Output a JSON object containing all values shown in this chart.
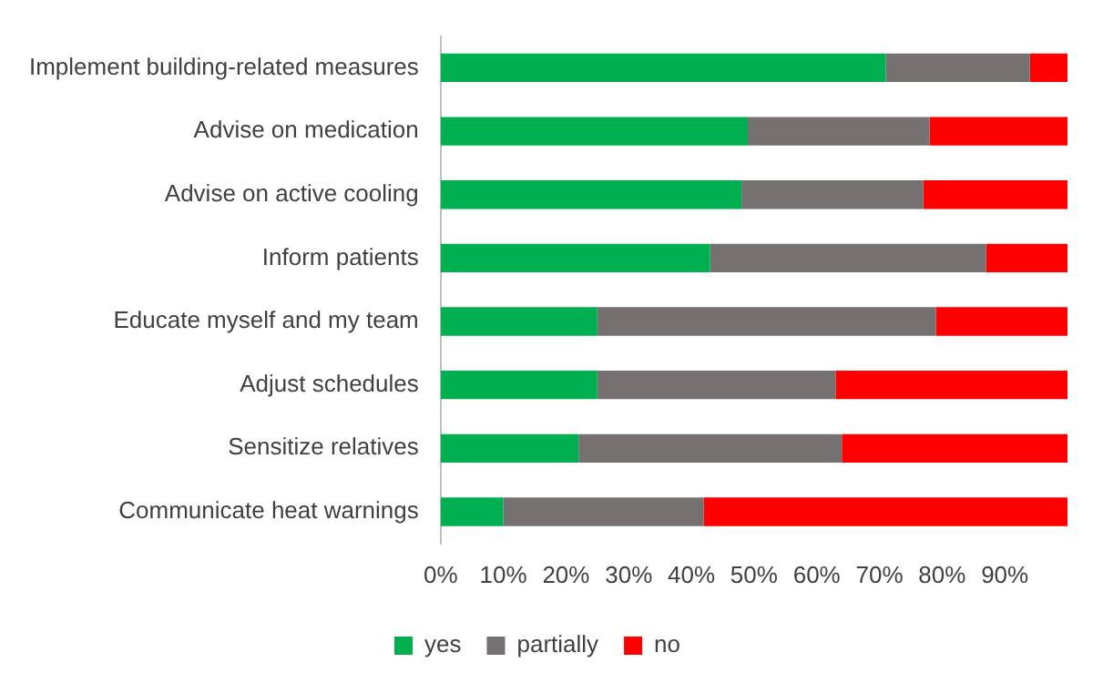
{
  "chart_data": {
    "type": "bar",
    "orientation": "horizontal",
    "stacked": true,
    "grid": false,
    "legend": "bottom",
    "categories": [
      "Implement building-related measures",
      "Advise on medication",
      "Advise on active cooling",
      "Inform patients",
      "Educate myself and my team",
      "Adjust schedules",
      "Sensitize relatives",
      "Communicate heat warnings"
    ],
    "series": [
      {
        "name": "yes",
        "color": "#00b050",
        "values": [
          71,
          49,
          48,
          43,
          25,
          25,
          22,
          10
        ]
      },
      {
        "name": "partially",
        "color": "#767171",
        "values": [
          23,
          29,
          29,
          44,
          54,
          38,
          42,
          32
        ]
      },
      {
        "name": "no",
        "color": "#ff0000",
        "values": [
          6,
          22,
          23,
          13,
          21,
          37,
          36,
          58
        ]
      }
    ],
    "xlim": [
      0,
      100
    ],
    "xticks": [
      {
        "value": 0,
        "label": "0%"
      },
      {
        "value": 10,
        "label": "10%"
      },
      {
        "value": 20,
        "label": "20%"
      },
      {
        "value": 30,
        "label": "30%"
      },
      {
        "value": 40,
        "label": "40%"
      },
      {
        "value": 50,
        "label": "50%"
      },
      {
        "value": 60,
        "label": "60%"
      },
      {
        "value": 70,
        "label": "70%"
      },
      {
        "value": 80,
        "label": "80%"
      },
      {
        "value": 90,
        "label": "90%"
      }
    ]
  }
}
